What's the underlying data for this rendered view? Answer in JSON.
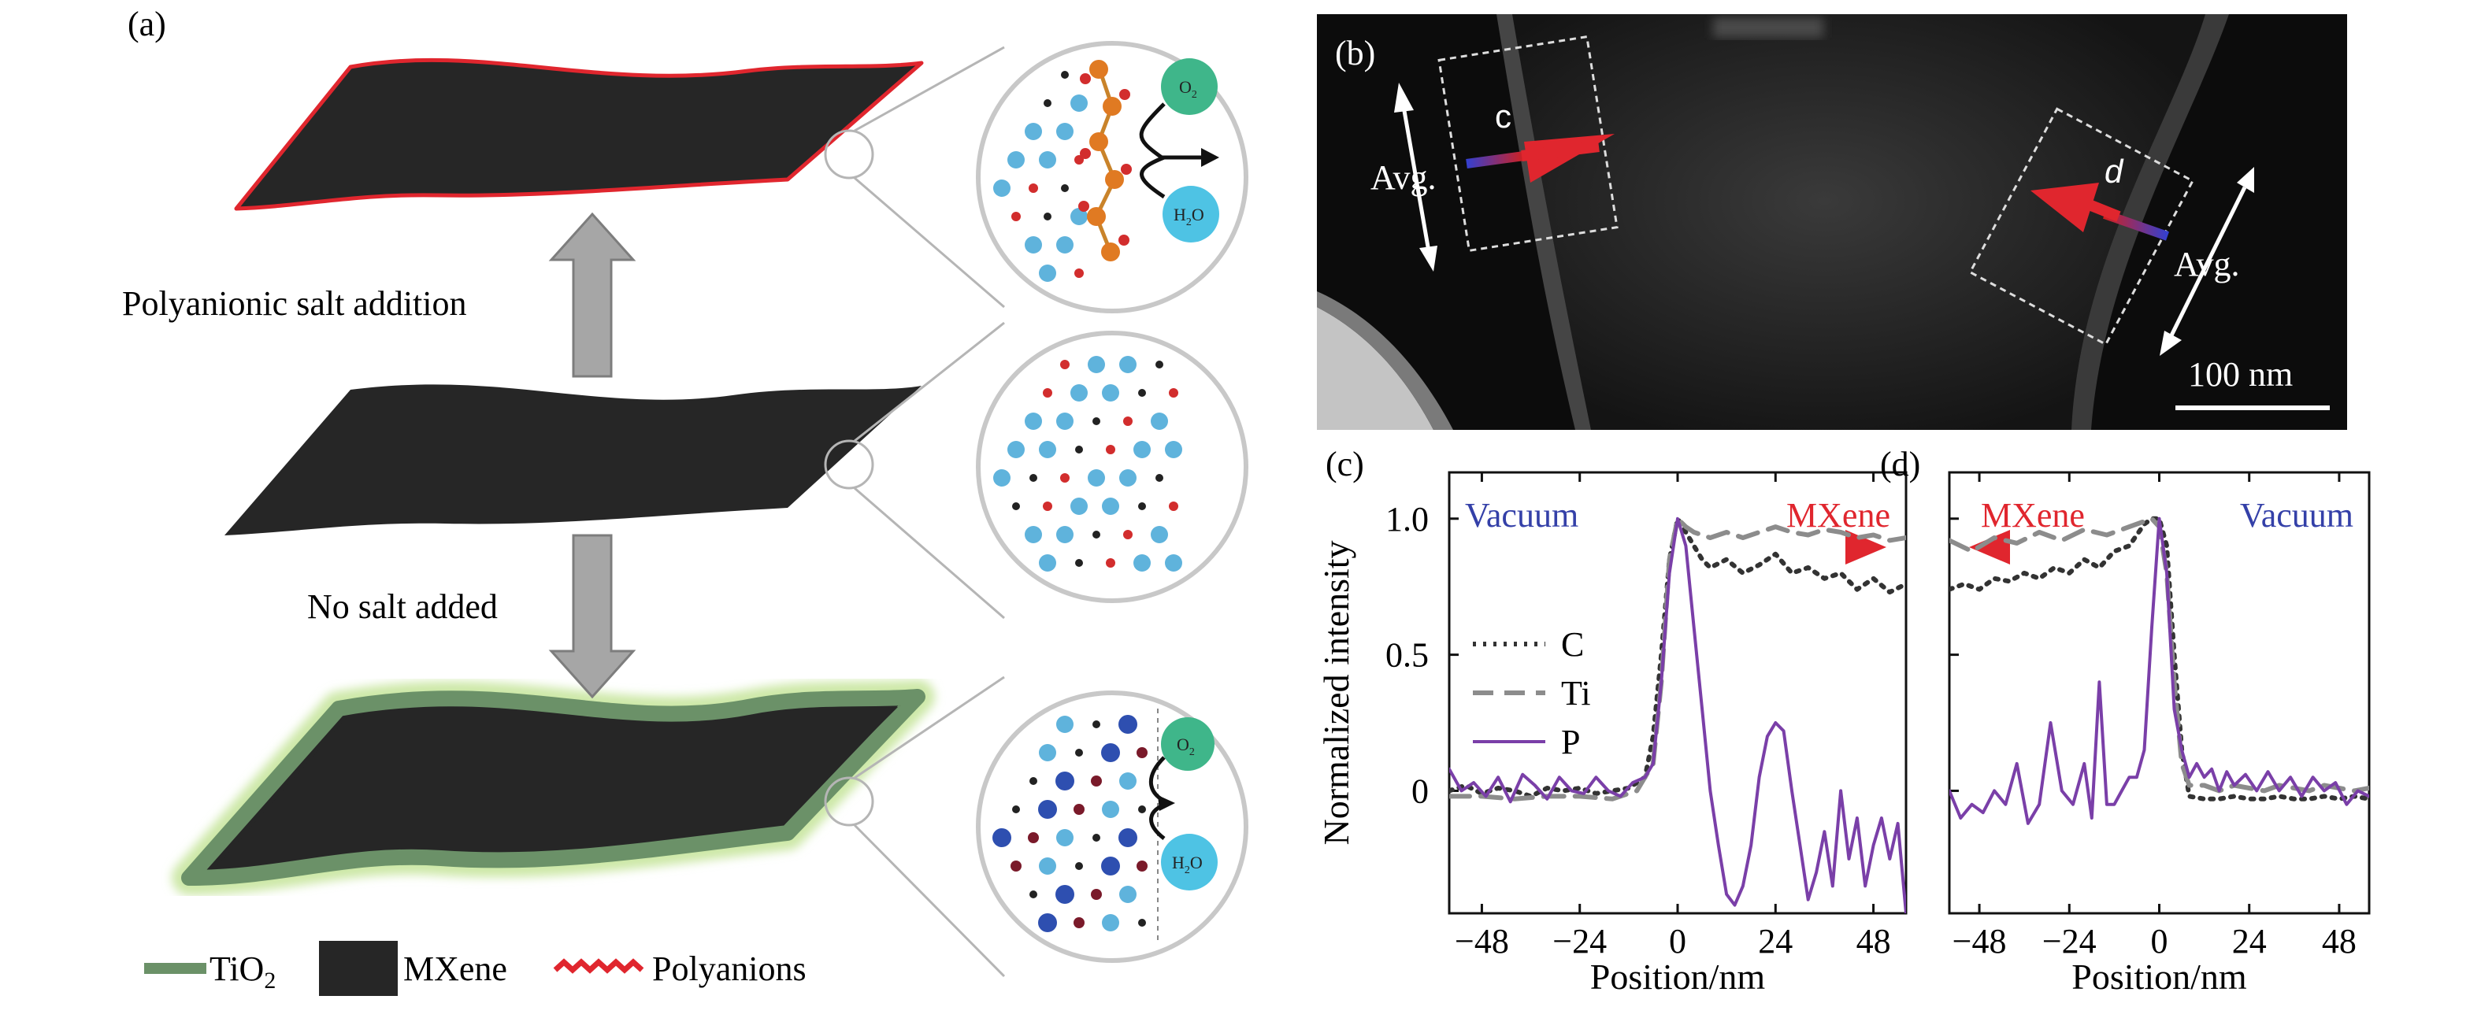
{
  "panels": {
    "a": {
      "label": "(a)",
      "arrow_top_label": "Polyanionic salt addition",
      "arrow_bottom_label": "No salt added",
      "bubble_top": {
        "o2": "O",
        "o2_sub": "2",
        "h2o_h": "H",
        "h2o_sub": "2",
        "h2o_o": "O"
      },
      "bubble_bottom": {
        "o2": "O",
        "o2_sub": "2",
        "h2o_h": "H",
        "h2o_sub": "2",
        "h2o_o": "O"
      },
      "legend": [
        {
          "label": "TiO",
          "sub": "2",
          "color": "#6b9168"
        },
        {
          "label": "MXene",
          "color": "#262626"
        },
        {
          "label": "Polyanions",
          "color": "#e0262e"
        }
      ]
    },
    "b": {
      "label": "(b)",
      "marker_c": "c",
      "marker_d": "d",
      "avg_left": "Avg.",
      "avg_right": "Avg.",
      "scale_bar": "100 nm"
    }
  },
  "chart_data": [
    {
      "panel_label": "(c)",
      "type": "line",
      "ylabel": "Normalized intensity",
      "xlabel": "Position/nm",
      "xlim": [
        -56,
        56
      ],
      "ylim": [
        -0.45,
        1.17
      ],
      "xticks": [
        -48,
        -24,
        0,
        24,
        48
      ],
      "xtick_labels": [
        "−48",
        "−24",
        "0",
        "24",
        "48"
      ],
      "yticks": [
        0,
        0.5,
        1.0
      ],
      "ytick_labels": [
        "0",
        "0.5",
        "1.0"
      ],
      "direction_arrow": {
        "left": "Vacuum",
        "right": "MXene",
        "pointing": "right"
      },
      "legend": {
        "placement": "middle-left",
        "entries": [
          "C",
          "Ti",
          "P"
        ]
      },
      "series": [
        {
          "name": "C",
          "color": "#333333",
          "dash": "dotted",
          "x": [
            -56,
            -52,
            -48,
            -44,
            -40,
            -36,
            -32,
            -28,
            -24,
            -20,
            -16,
            -12,
            -8,
            -6,
            -4,
            -2,
            0,
            2,
            4,
            6,
            8,
            12,
            16,
            20,
            24,
            28,
            32,
            36,
            40,
            44,
            48,
            52,
            56
          ],
          "y": [
            0.0,
            0.02,
            -0.01,
            0.01,
            0.0,
            -0.02,
            0.01,
            0.0,
            0.01,
            -0.01,
            0.0,
            0.01,
            0.05,
            0.2,
            0.5,
            0.85,
            1.0,
            0.95,
            0.9,
            0.85,
            0.82,
            0.85,
            0.8,
            0.83,
            0.87,
            0.8,
            0.82,
            0.78,
            0.8,
            0.74,
            0.78,
            0.73,
            0.76
          ]
        },
        {
          "name": "Ti",
          "color": "#8c8c8c",
          "dash": "dashed",
          "x": [
            -56,
            -48,
            -40,
            -32,
            -24,
            -16,
            -10,
            -6,
            -4,
            -2,
            0,
            2,
            4,
            8,
            12,
            16,
            20,
            24,
            28,
            32,
            36,
            40,
            44,
            48,
            52,
            56
          ],
          "y": [
            -0.02,
            -0.02,
            -0.03,
            -0.02,
            -0.02,
            -0.03,
            0.0,
            0.1,
            0.4,
            0.85,
            1.0,
            0.97,
            0.95,
            0.93,
            0.95,
            0.93,
            0.95,
            0.97,
            0.95,
            0.94,
            0.96,
            0.95,
            0.93,
            0.94,
            0.92,
            0.93
          ]
        },
        {
          "name": "P",
          "color": "#7a3fa8",
          "dash": "solid",
          "x": [
            -56,
            -53,
            -50,
            -47,
            -44,
            -41,
            -38,
            -35,
            -32,
            -29,
            -26,
            -23,
            -20,
            -17,
            -14,
            -11,
            -8,
            -6,
            -4,
            -2,
            0,
            2,
            4,
            6,
            8,
            10,
            12,
            14,
            16,
            18,
            20,
            22,
            24,
            26,
            28,
            30,
            32,
            34,
            36,
            38,
            40,
            42,
            44,
            46,
            48,
            50,
            52,
            54,
            56
          ],
          "y": [
            0.08,
            0.0,
            0.03,
            -0.02,
            0.05,
            -0.04,
            0.06,
            0.02,
            -0.03,
            0.05,
            0.0,
            -0.01,
            0.05,
            0.0,
            -0.02,
            0.03,
            0.05,
            0.1,
            0.4,
            0.8,
            1.0,
            0.9,
            0.6,
            0.3,
            0.0,
            -0.2,
            -0.38,
            -0.42,
            -0.35,
            -0.2,
            0.05,
            0.2,
            0.25,
            0.22,
            0.0,
            -0.2,
            -0.4,
            -0.3,
            -0.15,
            -0.35,
            0.0,
            -0.25,
            -0.1,
            -0.35,
            -0.2,
            -0.1,
            -0.25,
            -0.12,
            -0.45
          ]
        }
      ]
    },
    {
      "panel_label": "(d)",
      "type": "line",
      "ylabel": "",
      "xlabel": "Position/nm",
      "xlim": [
        -56,
        56
      ],
      "ylim": [
        -0.45,
        1.17
      ],
      "xticks": [
        -48,
        -24,
        0,
        24,
        48
      ],
      "xtick_labels": [
        "−48",
        "−24",
        "0",
        "24",
        "48"
      ],
      "direction_arrow": {
        "left": "MXene",
        "right": "Vacuum",
        "pointing": "left"
      },
      "series": [
        {
          "name": "C",
          "color": "#333333",
          "dash": "dotted",
          "x": [
            -56,
            -52,
            -48,
            -44,
            -40,
            -36,
            -32,
            -28,
            -24,
            -20,
            -16,
            -12,
            -8,
            -4,
            -2,
            0,
            2,
            4,
            6,
            8,
            12,
            16,
            20,
            24,
            28,
            32,
            36,
            40,
            44,
            48,
            52,
            56
          ],
          "y": [
            0.74,
            0.76,
            0.74,
            0.78,
            0.77,
            0.8,
            0.78,
            0.82,
            0.8,
            0.85,
            0.82,
            0.88,
            0.9,
            0.98,
            1.0,
            1.0,
            0.9,
            0.5,
            0.15,
            -0.02,
            -0.03,
            -0.03,
            -0.02,
            -0.03,
            -0.03,
            -0.02,
            -0.03,
            -0.03,
            -0.02,
            -0.03,
            -0.02,
            -0.03
          ]
        },
        {
          "name": "Ti",
          "color": "#8c8c8c",
          "dash": "dashed",
          "x": [
            -56,
            -50,
            -44,
            -38,
            -32,
            -26,
            -20,
            -14,
            -8,
            -4,
            -2,
            0,
            2,
            4,
            6,
            8,
            12,
            16,
            20,
            24,
            28,
            32,
            36,
            40,
            44,
            48,
            52,
            56
          ],
          "y": [
            0.92,
            0.88,
            0.93,
            0.91,
            0.95,
            0.92,
            0.96,
            0.94,
            0.97,
            0.99,
            1.0,
            0.97,
            0.8,
            0.4,
            0.1,
            0.02,
            0.02,
            0.0,
            0.02,
            0.01,
            0.0,
            0.02,
            0.01,
            0.0,
            0.02,
            0.01,
            0.0,
            0.01
          ]
        },
        {
          "name": "P",
          "color": "#7a3fa8",
          "dash": "solid",
          "x": [
            -56,
            -53,
            -50,
            -47,
            -44,
            -41,
            -38,
            -35,
            -32,
            -29,
            -26,
            -23,
            -20,
            -18,
            -16,
            -14,
            -12,
            -10,
            -8,
            -6,
            -4,
            -2,
            0,
            2,
            4,
            6,
            8,
            10,
            12,
            14,
            16,
            18,
            20,
            23,
            26,
            29,
            32,
            35,
            38,
            41,
            44,
            47,
            50,
            53,
            56
          ],
          "y": [
            0.0,
            -0.1,
            -0.05,
            -0.08,
            0.0,
            -0.05,
            0.1,
            -0.12,
            -0.05,
            0.25,
            0.0,
            -0.05,
            0.1,
            -0.1,
            0.4,
            -0.05,
            -0.05,
            0.0,
            0.05,
            0.05,
            0.15,
            0.6,
            1.0,
            0.8,
            0.3,
            0.15,
            0.05,
            0.1,
            0.05,
            0.08,
            0.0,
            0.07,
            0.02,
            0.06,
            0.0,
            0.07,
            0.0,
            0.05,
            -0.02,
            0.05,
            0.0,
            0.03,
            -0.05,
            0.0,
            -0.02
          ]
        }
      ]
    }
  ]
}
